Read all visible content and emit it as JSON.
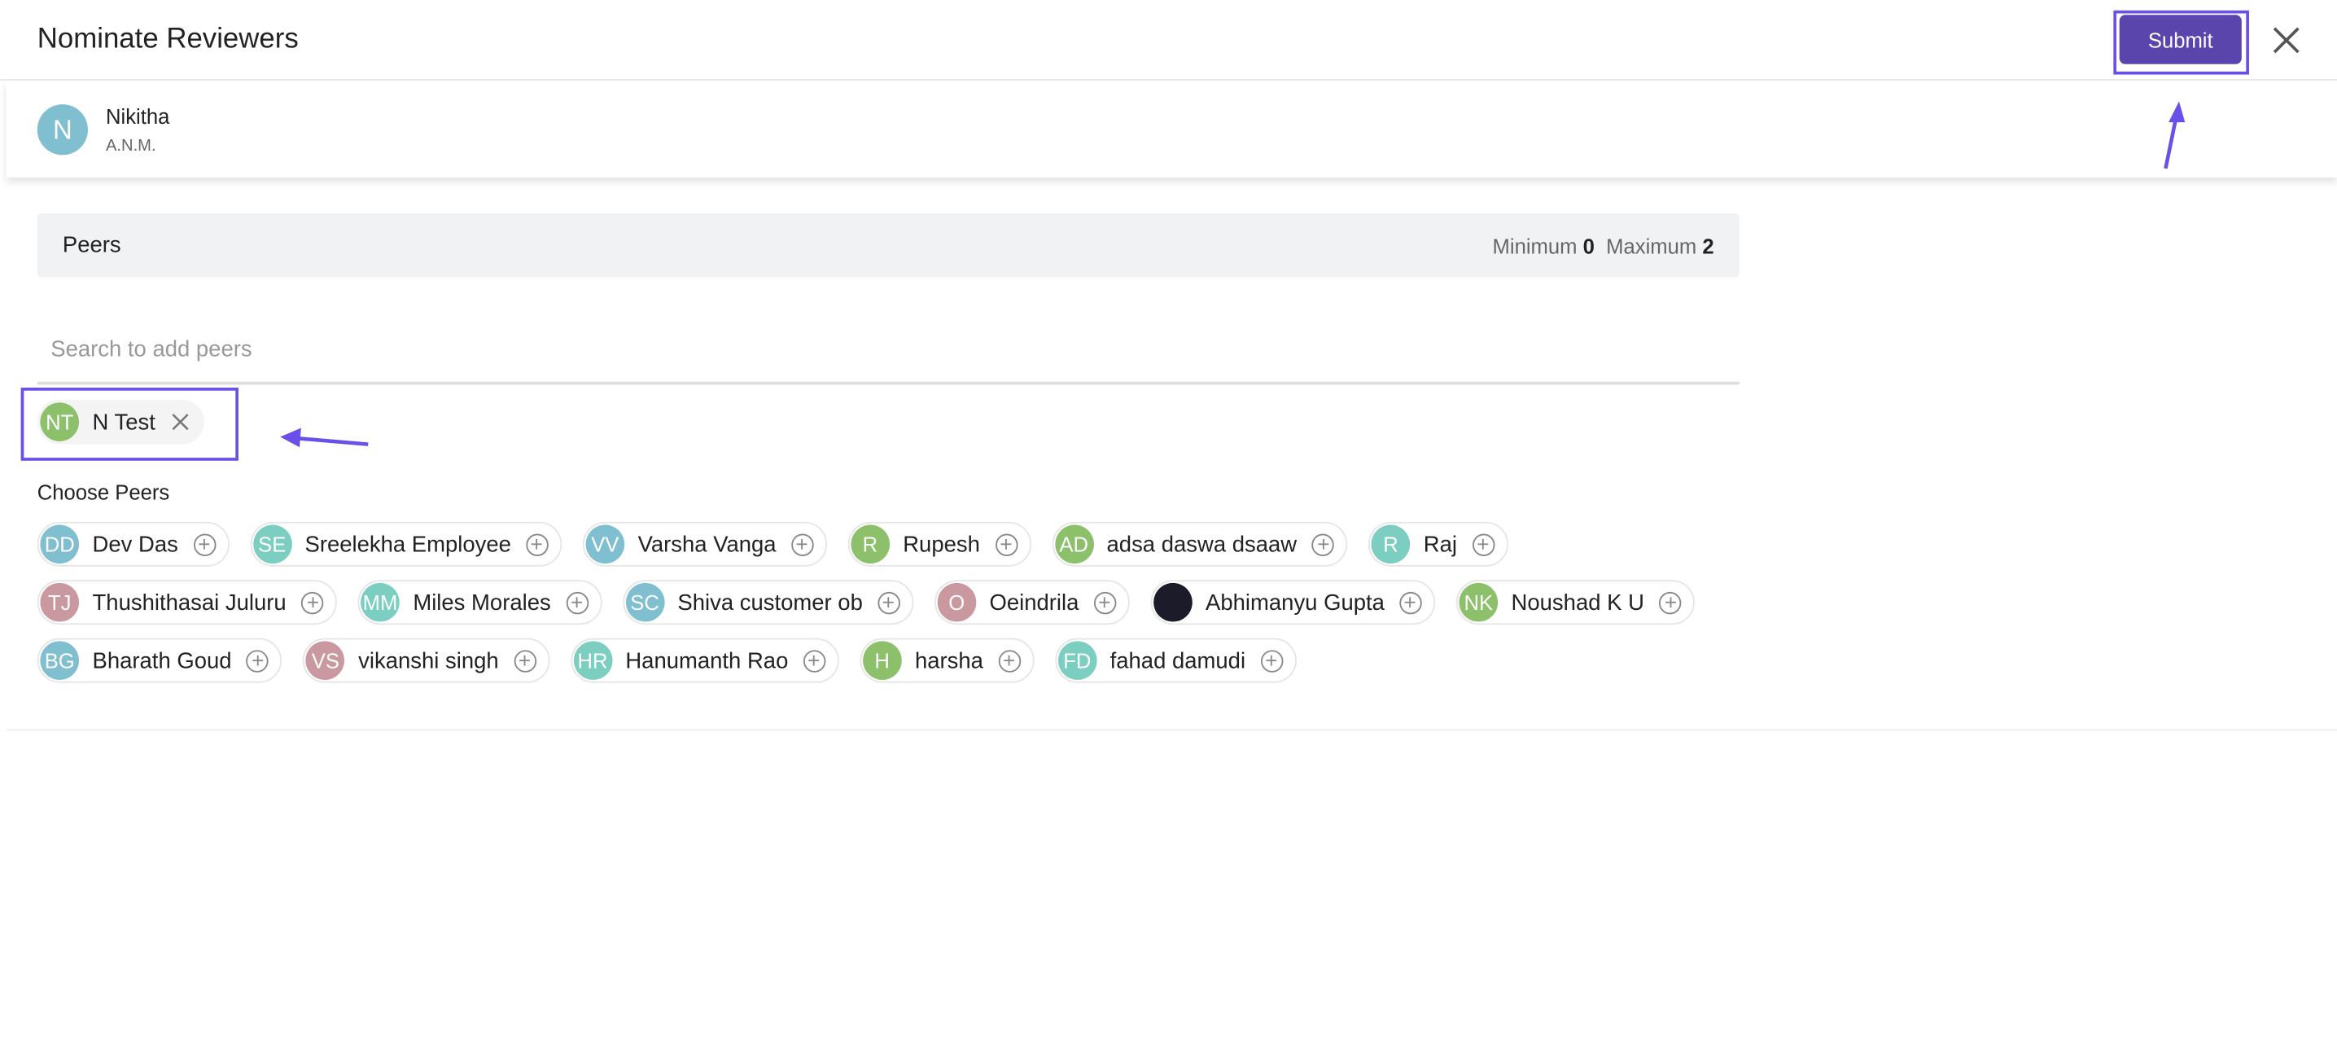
{
  "header": {
    "title": "Nominate Reviewers",
    "submit": "Submit"
  },
  "employee": {
    "initials": "N",
    "name": "Nikitha",
    "role": "A.N.M."
  },
  "peers": {
    "label": "Peers",
    "min_label": "Minimum",
    "min": "0",
    "max_label": "Maximum",
    "max": "2"
  },
  "search": {
    "placeholder": "Search to add peers"
  },
  "selected": [
    {
      "initials": "NT",
      "name": "N Test",
      "color": "#8cc06b"
    }
  ],
  "choose": {
    "label": "Choose Peers"
  },
  "choices": [
    {
      "initials": "DD",
      "name": "Dev Das",
      "color": "#7fbfd0"
    },
    {
      "initials": "SE",
      "name": "Sreelekha Employee",
      "color": "#7ccfc0"
    },
    {
      "initials": "VV",
      "name": "Varsha Vanga",
      "color": "#7fbfd0"
    },
    {
      "initials": "R",
      "name": "Rupesh",
      "color": "#8cc06b"
    },
    {
      "initials": "AD",
      "name": "adsa daswa dsaaw",
      "color": "#8cc06b"
    },
    {
      "initials": "R",
      "name": "Raj",
      "color": "#7ccfc0"
    },
    {
      "initials": "TJ",
      "name": "Thushithasai Juluru",
      "color": "#c9999f"
    },
    {
      "initials": "MM",
      "name": "Miles Morales",
      "color": "#7ccfc0"
    },
    {
      "initials": "SC",
      "name": "Shiva customer ob",
      "color": "#7fbfd0"
    },
    {
      "initials": "O",
      "name": "Oeindrila",
      "color": "#c9999f"
    },
    {
      "name": "Abhimanyu Gupta",
      "color": "#1b1b2a"
    },
    {
      "initials": "NK",
      "name": "Noushad K U",
      "color": "#8cc06b"
    },
    {
      "initials": "BG",
      "name": "Bharath Goud",
      "color": "#7fbfd0"
    },
    {
      "initials": "VS",
      "name": "vikanshi singh",
      "color": "#c9999f"
    },
    {
      "initials": "HR",
      "name": "Hanumanth Rao",
      "color": "#7ccfc0"
    },
    {
      "initials": "H",
      "name": "harsha",
      "color": "#8cc06b"
    },
    {
      "initials": "FD",
      "name": "fahad damudi",
      "color": "#7ccfc0"
    }
  ]
}
